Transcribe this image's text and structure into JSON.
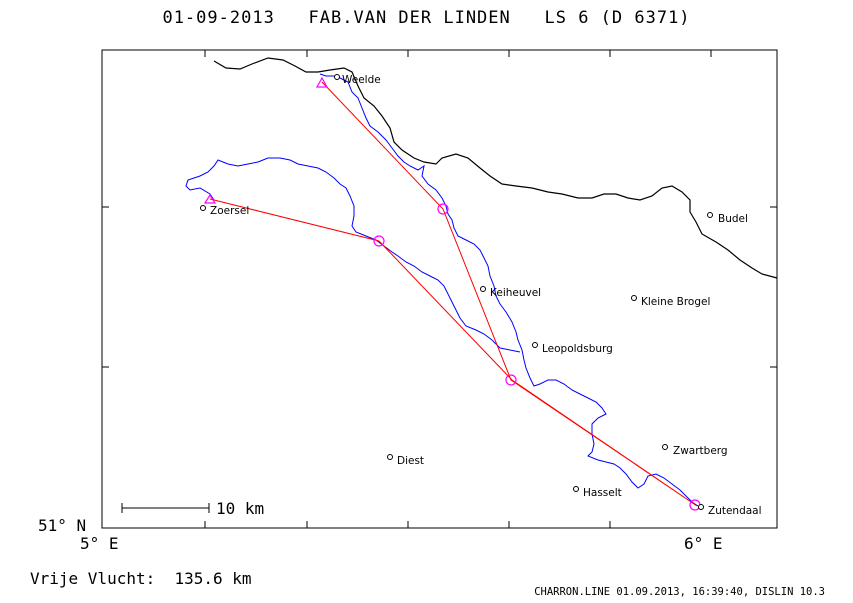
{
  "header": {
    "date": "01-09-2013",
    "pilot": "FAB.VAN DER LINDEN",
    "glider": "LS 6 (D 6371)"
  },
  "axes": {
    "lat_label": "51° N",
    "lon_left_label": "5° E",
    "lon_right_label": "6° E"
  },
  "scale_bar": {
    "label": "10 km"
  },
  "towns": [
    {
      "name": "Weelde"
    },
    {
      "name": "Zoersel"
    },
    {
      "name": "Budel"
    },
    {
      "name": "Keiheuvel"
    },
    {
      "name": "Kleine Brogel"
    },
    {
      "name": "Leopoldsburg"
    },
    {
      "name": "Zwartberg"
    },
    {
      "name": "Diest"
    },
    {
      "name": "Hasselt"
    },
    {
      "name": "Zutendaal"
    }
  ],
  "flight": {
    "label": "Vrije Vlucht:",
    "distance": "135.6 km"
  },
  "footer": {
    "text": "CHARRON.LINE 01.09.2013, 16:39:40, DISLIN 10.3"
  },
  "colors": {
    "track": "#0000ff",
    "task": "#ff0000",
    "turnpoint": "#ff00ff",
    "border": "#000000"
  }
}
